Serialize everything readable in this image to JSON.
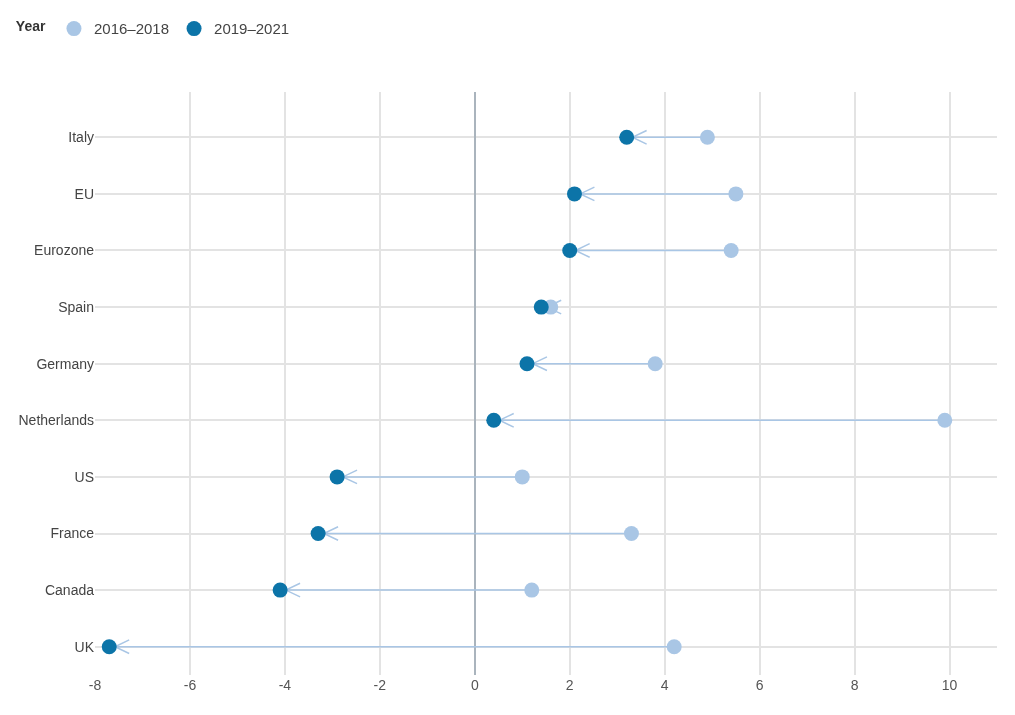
{
  "chart_data": {
    "type": "scatter",
    "orientation": "horizontal",
    "legend_title": "Year",
    "legend": "top left",
    "grid": true,
    "marker": "circle",
    "categories": [
      "Italy",
      "EU",
      "Eurozone",
      "Spain",
      "Germany",
      "Netherlands",
      "US",
      "France",
      "Canada",
      "UK"
    ],
    "series": [
      {
        "name": "2016–2018",
        "color": "#a9c6e5",
        "values": [
          4.9,
          5.5,
          5.4,
          1.6,
          3.8,
          9.9,
          1.0,
          3.3,
          1.2,
          4.2
        ]
      },
      {
        "name": "2019–2021",
        "color": "#0c74a8",
        "values": [
          3.2,
          2.1,
          2.0,
          1.4,
          1.1,
          0.4,
          -2.9,
          -3.3,
          -4.1,
          -7.7
        ]
      }
    ],
    "xlim": [
      -8,
      11
    ],
    "xticks": [
      -8,
      -6,
      -4,
      -2,
      0,
      2,
      4,
      6,
      8,
      10
    ]
  }
}
